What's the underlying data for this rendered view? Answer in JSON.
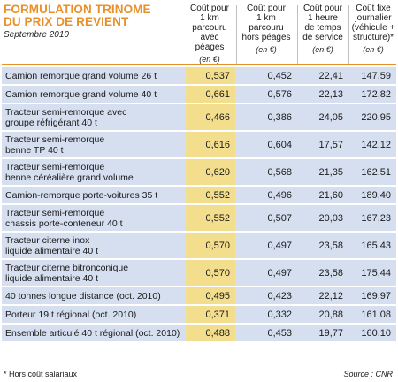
{
  "title": {
    "line1": "FORMULATION TRINOME",
    "line2": "DU PRIX DE REVIENT",
    "subtitle": "Septembre 2010"
  },
  "columns": [
    {
      "label": "Coût pour\n1 km\nparcouru\navec péages",
      "unit": "(en €)"
    },
    {
      "label": "Coût pour\n1 km\nparcouru\nhors péages",
      "unit": "(en €)"
    },
    {
      "label": "Coût pour\n1 heure\nde temps\nde service",
      "unit": "(en €)"
    },
    {
      "label": "Coût fixe\njournalier\n(véhicule +\nstructure)*",
      "unit": "(en €)"
    }
  ],
  "rows": [
    {
      "name": "Camion remorque grand volume 26 t",
      "v": [
        "0,537",
        "0,452",
        "22,41",
        "147,59"
      ]
    },
    {
      "name": "Camion remorque grand volume 40 t",
      "v": [
        "0,661",
        "0,576",
        "22,13",
        "172,82"
      ]
    },
    {
      "name": "Tracteur semi-remorque avec\ngroupe réfrigérant 40 t",
      "v": [
        "0,466",
        "0,386",
        "24,05",
        "220,95"
      ]
    },
    {
      "name": "Tracteur semi-remorque\nbenne TP 40 t",
      "v": [
        "0,616",
        "0,604",
        "17,57",
        "142,12"
      ]
    },
    {
      "name": "Tracteur semi-remorque\nbenne céréalière grand volume",
      "v": [
        "0,620",
        "0,568",
        "21,35",
        "162,51"
      ]
    },
    {
      "name": "Camion-remorque porte-voitures 35 t",
      "v": [
        "0,552",
        "0,496",
        "21,60",
        "189,40"
      ]
    },
    {
      "name": "Tracteur semi-remorque\nchassis porte-conteneur 40 t",
      "v": [
        "0,552",
        "0,507",
        "20,03",
        "167,23"
      ]
    },
    {
      "name": "Tracteur citerne inox\nliquide alimentaire 40 t",
      "v": [
        "0,570",
        "0,497",
        "23,58",
        "165,43"
      ]
    },
    {
      "name": "Tracteur citerne bitronconique\nliquide alimentaire 40 t",
      "v": [
        "0,570",
        "0,497",
        "23,58",
        "175,44"
      ]
    },
    {
      "name": "40 tonnes longue distance (oct. 2010)",
      "v": [
        "0,495",
        "0,423",
        "22,12",
        "169,97"
      ]
    },
    {
      "name": "Porteur 19 t régional (oct. 2010)",
      "v": [
        "0,371",
        "0,332",
        "20,88",
        "161,08"
      ]
    },
    {
      "name": "Ensemble articulé 40 t régional (oct. 2010)",
      "v": [
        "0,488",
        "0,453",
        "19,77",
        "160,10"
      ]
    }
  ],
  "footnote": "* Hors coût salariaux",
  "source": "Source : CNR",
  "colors": {
    "title": "#e8902a",
    "row_bg": "#d6dff0",
    "highlight": "#f3de8e"
  }
}
